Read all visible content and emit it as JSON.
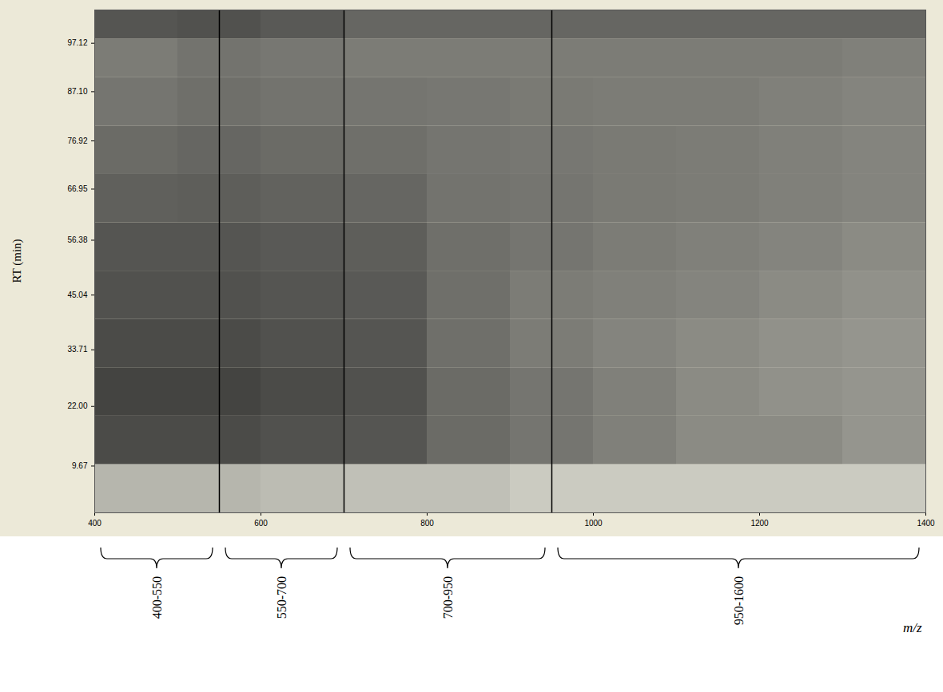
{
  "chart_data": {
    "type": "heatmap",
    "xlabel": "m/z",
    "ylabel": "RT (min)",
    "xlim": [
      400,
      1400
    ],
    "ylim": [
      0,
      104
    ],
    "xticks": [
      400,
      600,
      800,
      1000,
      1200,
      1400
    ],
    "yticks": [
      9.67,
      {
        "value": 22,
        "label": "22.00"
      },
      33.71,
      45.04,
      56.38,
      66.95,
      76.92,
      {
        "value": 87.1,
        "label": "87.10"
      },
      97.12
    ],
    "cells": {
      "x": [
        400,
        500,
        600,
        700,
        800,
        900,
        1000,
        1100,
        1200,
        1300,
        1400
      ],
      "y": [
        0,
        10,
        20,
        30,
        40,
        50,
        60,
        70,
        80,
        90,
        98,
        104
      ],
      "values": [
        [
          25,
          25,
          22,
          20,
          20,
          15,
          15,
          15,
          15,
          15
        ],
        [
          75,
          75,
          72,
          70,
          60,
          55,
          50,
          45,
          45,
          40
        ],
        [
          78,
          78,
          75,
          72,
          60,
          55,
          50,
          45,
          42,
          40
        ],
        [
          75,
          75,
          72,
          70,
          58,
          52,
          48,
          45,
          42,
          40
        ],
        [
          72,
          72,
          70,
          68,
          58,
          52,
          50,
          48,
          45,
          42
        ],
        [
          70,
          70,
          68,
          66,
          58,
          55,
          52,
          50,
          48,
          45
        ],
        [
          65,
          66,
          64,
          62,
          56,
          55,
          53,
          52,
          50,
          48
        ],
        [
          60,
          62,
          60,
          58,
          55,
          54,
          53,
          52,
          50,
          48
        ],
        [
          55,
          58,
          56,
          55,
          54,
          53,
          52,
          52,
          50,
          48
        ],
        [
          52,
          56,
          54,
          52,
          52,
          52,
          52,
          52,
          52,
          50
        ],
        [
          70,
          72,
          68,
          62,
          62,
          62,
          62,
          62,
          62,
          62
        ]
      ]
    },
    "clim": [
      0,
      100
    ],
    "dividers": [
      550,
      700,
      950
    ],
    "ranges": [
      "400-550",
      "550-700",
      "700-950",
      "950-1600"
    ]
  }
}
